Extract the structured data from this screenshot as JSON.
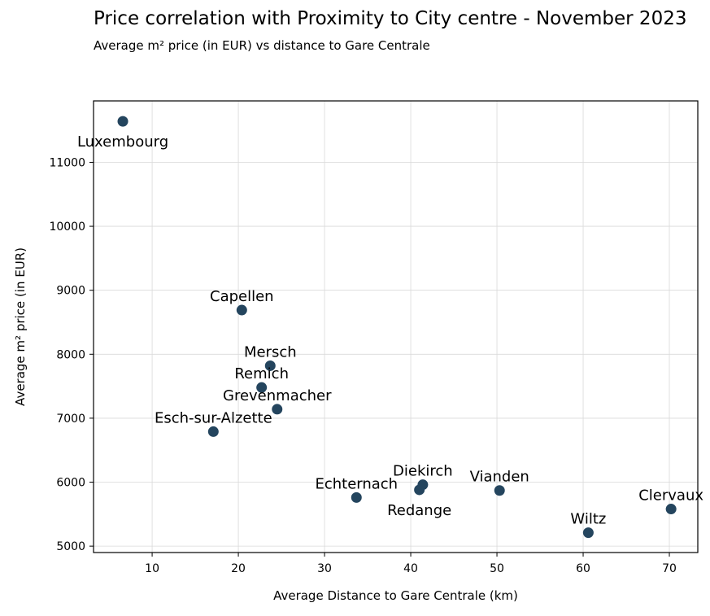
{
  "chart_data": {
    "type": "scatter",
    "title": "Price correlation with Proximity to City centre - November 2023",
    "subtitle": "Average m² price (in EUR) vs distance to Gare Centrale",
    "xlabel": "Average Distance to Gare Centrale (km)",
    "ylabel": "Average m² price (in EUR)",
    "xlim": [
      3.2,
      73.3
    ],
    "ylim": [
      4900,
      11960
    ],
    "xticks": [
      10,
      20,
      30,
      40,
      50,
      60,
      70
    ],
    "yticks": [
      5000,
      6000,
      7000,
      8000,
      9000,
      10000,
      11000
    ],
    "grid": true,
    "color": "#24455e",
    "points": [
      {
        "label": "Luxembourg",
        "x": 6.6,
        "y": 11640,
        "label_pos": "below"
      },
      {
        "label": "Capellen",
        "x": 20.4,
        "y": 8690,
        "label_pos": "above"
      },
      {
        "label": "Mersch",
        "x": 23.7,
        "y": 7820,
        "label_pos": "above"
      },
      {
        "label": "Remich",
        "x": 22.7,
        "y": 7480,
        "label_pos": "above"
      },
      {
        "label": "Grevenmacher",
        "x": 24.5,
        "y": 7140,
        "label_pos": "above"
      },
      {
        "label": "Esch-sur-Alzette",
        "x": 17.1,
        "y": 6790,
        "label_pos": "above"
      },
      {
        "label": "Diekirch",
        "x": 41.4,
        "y": 5960,
        "label_pos": "above"
      },
      {
        "label": "Echternach",
        "x": 33.7,
        "y": 5760,
        "label_pos": "above"
      },
      {
        "label": "Redange",
        "x": 41.0,
        "y": 5880,
        "label_pos": "below"
      },
      {
        "label": "Vianden",
        "x": 50.3,
        "y": 5870,
        "label_pos": "above"
      },
      {
        "label": "Clervaux",
        "x": 70.2,
        "y": 5580,
        "label_pos": "above"
      },
      {
        "label": "Wiltz",
        "x": 60.6,
        "y": 5210,
        "label_pos": "above"
      }
    ]
  }
}
